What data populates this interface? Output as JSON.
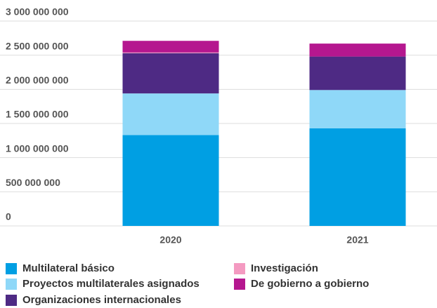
{
  "chart_data": {
    "type": "stacked_bar",
    "categories": [
      "2020",
      "2021"
    ],
    "series": [
      {
        "name": "Multilateral básico",
        "color": "#009fe3",
        "values": [
          1330000000,
          1430000000
        ]
      },
      {
        "name": "Proyectos multilaterales asignados",
        "color": "#8fd8f8",
        "values": [
          610000000,
          560000000
        ]
      },
      {
        "name": "Organizaciones internacionales",
        "color": "#4e2a84",
        "values": [
          590000000,
          490000000
        ]
      },
      {
        "name": "Investigación",
        "color": "#f49ac1",
        "values": [
          10000000,
          0
        ]
      },
      {
        "name": "De gobierno a gobierno",
        "color": "#b5178f",
        "values": [
          170000000,
          190000000
        ]
      }
    ],
    "ylim": [
      0,
      3000000000
    ],
    "yticks": [
      0,
      {
        "value": 500000000,
        "label": "500 000 000"
      },
      {
        "value": 1000000000,
        "label": "1 000 000 000"
      },
      {
        "value": 1500000000,
        "label": "1 500 000 000"
      },
      {
        "value": 2000000000,
        "label": "2 000 000 000"
      },
      {
        "value": 2500000000,
        "label": "2 500 000 000"
      },
      {
        "value": 3000000000,
        "label": "3 000 000 000"
      }
    ],
    "grid": true
  }
}
